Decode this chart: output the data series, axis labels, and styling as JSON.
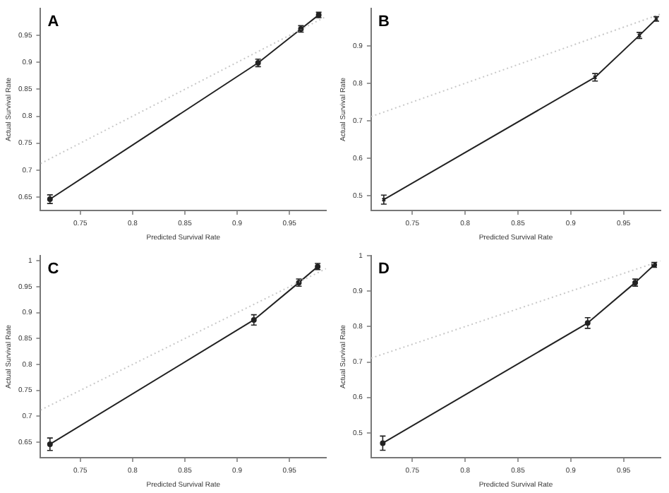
{
  "chart_data": [
    {
      "type": "line",
      "title": "A",
      "xlabel": "Predicted Survival Rate",
      "ylabel": "Actual Survival Rate",
      "xlim": [
        0.712,
        0.985
      ],
      "ylim": [
        0.625,
        1.0
      ],
      "xticks": [
        0.75,
        0.8,
        0.85,
        0.9,
        0.95
      ],
      "yticks": [
        0.65,
        0.7,
        0.75,
        0.8,
        0.85,
        0.9,
        0.95
      ],
      "grid": false,
      "legend": false,
      "series": [
        {
          "x": [
            0.712,
            0.985
          ],
          "values": [
            0.712,
            0.985
          ],
          "color": "#c8c8c8",
          "line_style": "dotted",
          "marker": "none"
        },
        {
          "x": [
            0.721,
            0.92,
            0.961,
            0.978
          ],
          "values": [
            0.646,
            0.899,
            0.962,
            0.988
          ],
          "errors": [
            0.008,
            0.007,
            0.006,
            0.005
          ],
          "color": "#222222",
          "line_style": "solid",
          "marker": "circle"
        }
      ]
    },
    {
      "type": "line",
      "title": "B",
      "xlabel": "Predicted Survival Rate",
      "ylabel": "Actual Survival Rate",
      "xlim": [
        0.711,
        0.985
      ],
      "ylim": [
        0.46,
        1.0
      ],
      "xticks": [
        0.75,
        0.8,
        0.85,
        0.9,
        0.95
      ],
      "yticks": [
        0.5,
        0.6,
        0.7,
        0.8,
        0.9
      ],
      "grid": false,
      "legend": false,
      "series": [
        {
          "x": [
            0.711,
            0.985
          ],
          "values": [
            0.711,
            0.985
          ],
          "color": "#c8c8c8",
          "line_style": "dotted",
          "marker": "none"
        },
        {
          "x": [
            0.723,
            0.923,
            0.965,
            0.981
          ],
          "values": [
            0.489,
            0.816,
            0.928,
            0.972
          ],
          "errors": [
            0.012,
            0.01,
            0.008,
            0.006
          ],
          "color": "#222222",
          "line_style": "solid",
          "marker": "cross"
        }
      ]
    },
    {
      "type": "line",
      "title": "C",
      "xlabel": "Predicted Survival Rate",
      "ylabel": "Actual Survival Rate",
      "xlim": [
        0.712,
        0.985
      ],
      "ylim": [
        0.62,
        1.01
      ],
      "xticks": [
        0.75,
        0.8,
        0.85,
        0.9,
        0.95
      ],
      "yticks": [
        0.65,
        0.7,
        0.75,
        0.8,
        0.85,
        0.9,
        0.95,
        1.0
      ],
      "grid": false,
      "legend": false,
      "series": [
        {
          "x": [
            0.712,
            0.985
          ],
          "values": [
            0.712,
            0.985
          ],
          "color": "#c8c8c8",
          "line_style": "dotted",
          "marker": "none"
        },
        {
          "x": [
            0.721,
            0.916,
            0.959,
            0.977
          ],
          "values": [
            0.646,
            0.886,
            0.958,
            0.989
          ],
          "errors": [
            0.012,
            0.01,
            0.007,
            0.006
          ],
          "color": "#222222",
          "line_style": "solid",
          "marker": "circle"
        }
      ]
    },
    {
      "type": "line",
      "title": "D",
      "xlabel": "Predicted Survival Rate",
      "ylabel": "Actual Survival Rate",
      "xlim": [
        0.711,
        0.985
      ],
      "ylim": [
        0.43,
        1.0
      ],
      "xticks": [
        0.75,
        0.8,
        0.85,
        0.9,
        0.95
      ],
      "yticks": [
        0.5,
        0.6,
        0.7,
        0.8,
        0.9,
        1.0
      ],
      "grid": false,
      "legend": false,
      "series": [
        {
          "x": [
            0.711,
            0.985
          ],
          "values": [
            0.711,
            0.985
          ],
          "color": "#c8c8c8",
          "line_style": "dotted",
          "marker": "none"
        },
        {
          "x": [
            0.722,
            0.916,
            0.961,
            0.979
          ],
          "values": [
            0.471,
            0.81,
            0.924,
            0.974
          ],
          "errors": [
            0.02,
            0.015,
            0.01,
            0.007
          ],
          "color": "#222222",
          "line_style": "solid",
          "marker": "circle"
        }
      ]
    }
  ]
}
